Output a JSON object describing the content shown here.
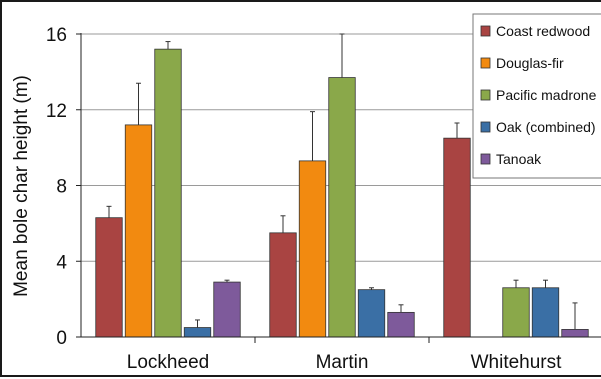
{
  "chart_data": {
    "type": "bar",
    "title": "",
    "xlabel": "",
    "ylabel": "Mean bole char height (m)",
    "ylim": [
      0,
      16
    ],
    "yticks": [
      "0",
      "4",
      "8",
      "12",
      "16"
    ],
    "ytick_values": [
      0,
      4,
      8,
      12,
      16
    ],
    "grid": true,
    "legend_position": "top-right",
    "categories": [
      "Lockheed",
      "Martin",
      "Whitehurst"
    ],
    "series": [
      {
        "name": "Coast redwood",
        "color": "#a94442",
        "values": [
          6.3,
          5.5,
          10.5
        ],
        "errors": [
          0.6,
          0.9,
          0.8
        ]
      },
      {
        "name": "Douglas-fir",
        "color": "#f28a10",
        "values": [
          11.2,
          9.3,
          null
        ],
        "errors": [
          2.2,
          2.6,
          null
        ]
      },
      {
        "name": "Pacific madrone",
        "color": "#8aa84a",
        "values": [
          15.2,
          13.7,
          2.6
        ],
        "errors": [
          0.4,
          2.3,
          0.4
        ]
      },
      {
        "name": "Oak (combined)",
        "color": "#3a6fa5",
        "values": [
          0.5,
          2.5,
          2.6
        ],
        "errors": [
          0.4,
          0.1,
          0.4
        ]
      },
      {
        "name": "Tanoak",
        "color": "#7e5a9b",
        "values": [
          2.9,
          1.3,
          0.4
        ],
        "errors": [
          0.1,
          0.4,
          1.4
        ]
      }
    ]
  }
}
